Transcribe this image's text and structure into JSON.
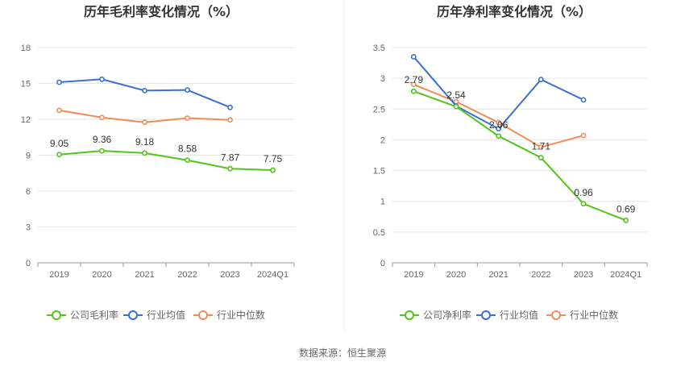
{
  "source_text": "数据来源：恒生聚源",
  "colors": {
    "company": "#52c41a",
    "avg": "#3a6fd8",
    "median": "#f08c5a",
    "grid": "#e6e6e6",
    "axis": "#999999"
  },
  "chart_data": [
    {
      "type": "line",
      "title": "历年毛利率变化情况（%）",
      "categories": [
        "2019",
        "2020",
        "2021",
        "2022",
        "2023",
        "2024Q1"
      ],
      "ylim": [
        0,
        18
      ],
      "yticks": [
        "0",
        "3",
        "6",
        "9",
        "12",
        "15",
        "18"
      ],
      "grid": true,
      "legend_position": "bottom",
      "series": [
        {
          "name": "公司毛利率",
          "key": "company",
          "values": [
            9.05,
            9.36,
            9.18,
            8.58,
            7.87,
            7.75
          ],
          "labels": [
            "9.05",
            "9.36",
            "9.18",
            "8.58",
            "7.87",
            "7.75"
          ]
        },
        {
          "name": "行业均值",
          "key": "avg",
          "values": [
            15.1,
            15.35,
            14.4,
            14.45,
            13.0,
            null
          ]
        },
        {
          "name": "行业中位数",
          "key": "median",
          "values": [
            12.75,
            12.15,
            11.75,
            12.1,
            11.95,
            null
          ]
        }
      ]
    },
    {
      "type": "line",
      "title": "历年净利率变化情况（%）",
      "categories": [
        "2019",
        "2020",
        "2021",
        "2022",
        "2023",
        "2024Q1"
      ],
      "ylim": [
        0,
        3.5
      ],
      "yticks": [
        "0",
        "0.5",
        "1",
        "1.5",
        "2",
        "2.5",
        "3",
        "3.5"
      ],
      "grid": true,
      "legend_position": "bottom",
      "series": [
        {
          "name": "公司净利率",
          "key": "company",
          "values": [
            2.79,
            2.54,
            2.06,
            1.71,
            0.96,
            0.69
          ],
          "labels": [
            "2.79",
            "2.54",
            "2.06",
            "1.71",
            "0.96",
            "0.69"
          ]
        },
        {
          "name": "行业均值",
          "key": "avg",
          "values": [
            3.35,
            2.55,
            2.18,
            2.98,
            2.65,
            null
          ]
        },
        {
          "name": "行业中位数",
          "key": "median",
          "values": [
            2.9,
            2.62,
            2.28,
            1.88,
            2.07,
            null
          ]
        }
      ]
    }
  ]
}
